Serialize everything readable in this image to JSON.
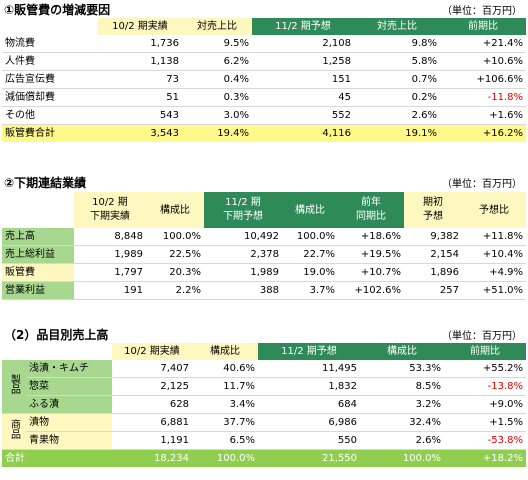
{
  "section1": {
    "heading": "①販管費の増減要因",
    "unit": "（単位：百万円）",
    "headers": [
      "10/2 期実績",
      "対売上比",
      "11/2 期予想",
      "対売上比",
      "前期比"
    ],
    "rows": [
      {
        "label": "物流費",
        "a": "1,736",
        "b": "9.5%",
        "c": "2,108",
        "d": "9.8%",
        "e": "+21.4%",
        "neg": false
      },
      {
        "label": "人件費",
        "a": "1,138",
        "b": "6.2%",
        "c": "1,258",
        "d": "5.8%",
        "e": "+10.6%",
        "neg": false
      },
      {
        "label": "広告宣伝費",
        "a": "73",
        "b": "0.4%",
        "c": "151",
        "d": "0.7%",
        "e": "+106.6%",
        "neg": false
      },
      {
        "label": "減価償却費",
        "a": "51",
        "b": "0.3%",
        "c": "45",
        "d": "0.2%",
        "e": "-11.8%",
        "neg": true
      },
      {
        "label": "その他",
        "a": "543",
        "b": "3.0%",
        "c": "552",
        "d": "2.6%",
        "e": "+1.6%",
        "neg": false
      }
    ],
    "total": {
      "label": "販管費合計",
      "a": "3,543",
      "b": "19.4%",
      "c": "4,116",
      "d": "19.1%",
      "e": "+16.2%"
    }
  },
  "section2": {
    "heading": "②下期連結業績",
    "unit": "（単位：百万円）",
    "headers": [
      {
        "l1": "10/2 期",
        "l2": "下期実績"
      },
      {
        "l1": "構成比",
        "l2": ""
      },
      {
        "l1": "11/2 期",
        "l2": "下期予想"
      },
      {
        "l1": "構成比",
        "l2": ""
      },
      {
        "l1": "前年",
        "l2": "同期比"
      },
      {
        "l1": "期初",
        "l2": "予想"
      },
      {
        "l1": "予想比",
        "l2": ""
      }
    ],
    "rows": [
      {
        "label": "売上高",
        "v": [
          "8,848",
          "100.0%",
          "10,492",
          "100.0%",
          "+18.6%",
          "9,382",
          "+11.8%"
        ],
        "style": "g"
      },
      {
        "label": "売上総利益",
        "v": [
          "1,989",
          "22.5%",
          "2,378",
          "22.7%",
          "+19.5%",
          "2,154",
          "+10.4%"
        ],
        "style": "g"
      },
      {
        "label": "販管費",
        "v": [
          "1,797",
          "20.3%",
          "1,989",
          "19.0%",
          "+10.7%",
          "1,896",
          "+4.9%"
        ],
        "style": "y"
      },
      {
        "label": "営業利益",
        "v": [
          "191",
          "2.2%",
          "388",
          "3.7%",
          "+102.6%",
          "257",
          "+51.0%"
        ],
        "style": "g"
      }
    ]
  },
  "section3": {
    "heading": "（2）品目別売上高",
    "unit": "（単位：百万円）",
    "headers": [
      "10/2 期実績",
      "構成比",
      "11/2 期予想",
      "構成比",
      "前期比"
    ],
    "cat1": "製品",
    "cat2": "商品",
    "rows": [
      {
        "label": "浅漬・キムチ",
        "a": "7,407",
        "b": "40.6%",
        "c": "11,495",
        "d": "53.3%",
        "e": "+55.2%",
        "neg": false
      },
      {
        "label": "惣菜",
        "a": "2,125",
        "b": "11.7%",
        "c": "1,832",
        "d": "8.5%",
        "e": "-13.8%",
        "neg": true
      },
      {
        "label": "ふる漬",
        "a": "628",
        "b": "3.4%",
        "c": "684",
        "d": "3.2%",
        "e": "+9.0%",
        "neg": false
      },
      {
        "label": "漬物",
        "a": "6,881",
        "b": "37.7%",
        "c": "6,986",
        "d": "32.4%",
        "e": "+1.5%",
        "neg": false
      },
      {
        "label": "青果物",
        "a": "1,191",
        "b": "6.5%",
        "c": "550",
        "d": "2.6%",
        "e": "-53.8%",
        "neg": true
      }
    ],
    "total": {
      "label": "合計",
      "a": "18,234",
      "b": "100.0%",
      "c": "21,550",
      "d": "100.0%",
      "e": "+18.2%"
    }
  }
}
